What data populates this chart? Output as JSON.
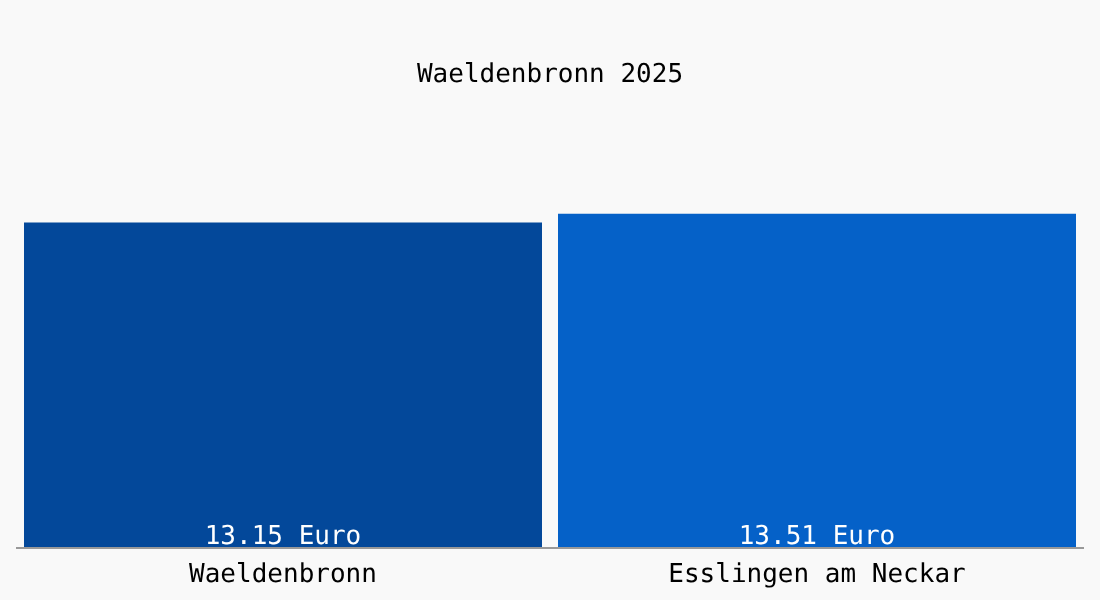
{
  "chart_data": {
    "type": "bar",
    "title": "Waeldenbronn 2025",
    "categories": [
      "Waeldenbronn",
      "Esslingen am Neckar"
    ],
    "values": [
      13.15,
      13.51
    ],
    "colors": [
      "#03489a",
      "#0561c8"
    ],
    "value_labels": [
      "13.15 Euro",
      "13.51 Euro"
    ],
    "grid": false,
    "legend": false
  }
}
